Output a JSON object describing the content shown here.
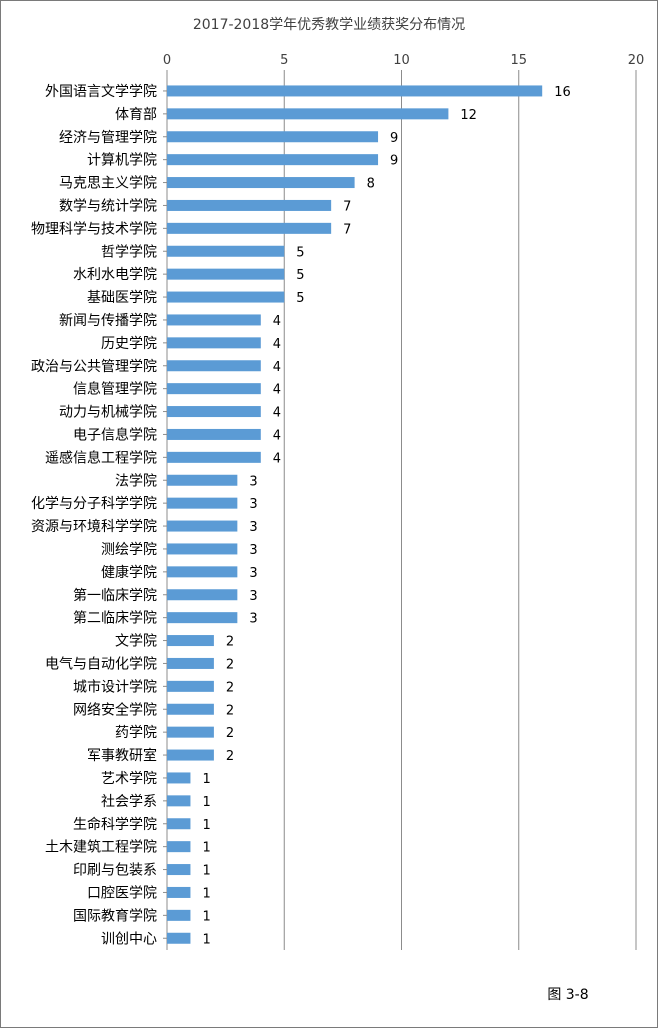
{
  "chart_data": {
    "type": "bar",
    "orientation": "horizontal",
    "title": "2017-2018学年优秀教学业绩获奖分布情况",
    "xlim": [
      0,
      20
    ],
    "xticks": [
      "0",
      "5",
      "10",
      "15",
      "20"
    ],
    "axis_position": "top",
    "grid": true,
    "bar_color": "#5b9bd5",
    "categories": [
      "外国语言文学学院",
      "体育部",
      "经济与管理学院",
      "计算机学院",
      "马克思主义学院",
      "数学与统计学院",
      "物理科学与技术学院",
      "哲学学院",
      "水利水电学院",
      "基础医学院",
      "新闻与传播学院",
      "历史学院",
      "政治与公共管理学院",
      "信息管理学院",
      "动力与机械学院",
      "电子信息学院",
      "遥感信息工程学院",
      "法学院",
      "化学与分子科学学院",
      "资源与环境科学学院",
      "测绘学院",
      "健康学院",
      "第一临床学院",
      "第二临床学院",
      "文学院",
      "电气与自动化学院",
      "城市设计学院",
      "网络安全学院",
      "药学院",
      "军事教研室",
      "艺术学院",
      "社会学系",
      "生命科学学院",
      "土木建筑工程学院",
      "印刷与包装系",
      "口腔医学院",
      "国际教育学院",
      "训创中心"
    ],
    "values": [
      16,
      12,
      9,
      9,
      8,
      7,
      7,
      5,
      5,
      5,
      4,
      4,
      4,
      4,
      4,
      4,
      4,
      3,
      3,
      3,
      3,
      3,
      3,
      3,
      2,
      2,
      2,
      2,
      2,
      2,
      1,
      1,
      1,
      1,
      1,
      1,
      1,
      1
    ],
    "value_labels": [
      "16",
      "12",
      "9",
      "9",
      "8",
      "7",
      "7",
      "5",
      "5",
      "5",
      "4",
      "4",
      "4",
      "4",
      "4",
      "4",
      "4",
      "3",
      "3",
      "3",
      "3",
      "3",
      "3",
      "3",
      "2",
      "2",
      "2",
      "2",
      "2",
      "2",
      "1",
      "1",
      "1",
      "1",
      "1",
      "1",
      "1",
      "1"
    ]
  },
  "figure_caption": "图 3-8"
}
